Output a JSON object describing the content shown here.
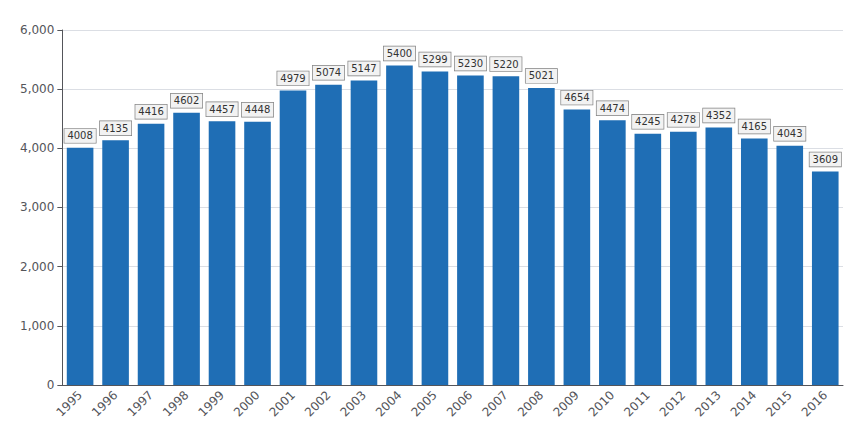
{
  "chart_data": {
    "type": "bar",
    "categories": [
      "1995",
      "1996",
      "1997",
      "1998",
      "1999",
      "2000",
      "2001",
      "2002",
      "2003",
      "2004",
      "2005",
      "2006",
      "2007",
      "2008",
      "2009",
      "2010",
      "2011",
      "2012",
      "2013",
      "2014",
      "2015",
      "2016"
    ],
    "values": [
      4008,
      4135,
      4416,
      4602,
      4457,
      4448,
      4979,
      5074,
      5147,
      5400,
      5299,
      5230,
      5220,
      5021,
      4654,
      4474,
      4245,
      4278,
      4352,
      4165,
      4043,
      3609
    ],
    "color": "#1F6EB5",
    "ylim": [
      0,
      6000
    ],
    "yticks": [
      0,
      1000,
      2000,
      3000,
      4000,
      5000,
      6000
    ],
    "grid": true,
    "data_labels": true
  }
}
